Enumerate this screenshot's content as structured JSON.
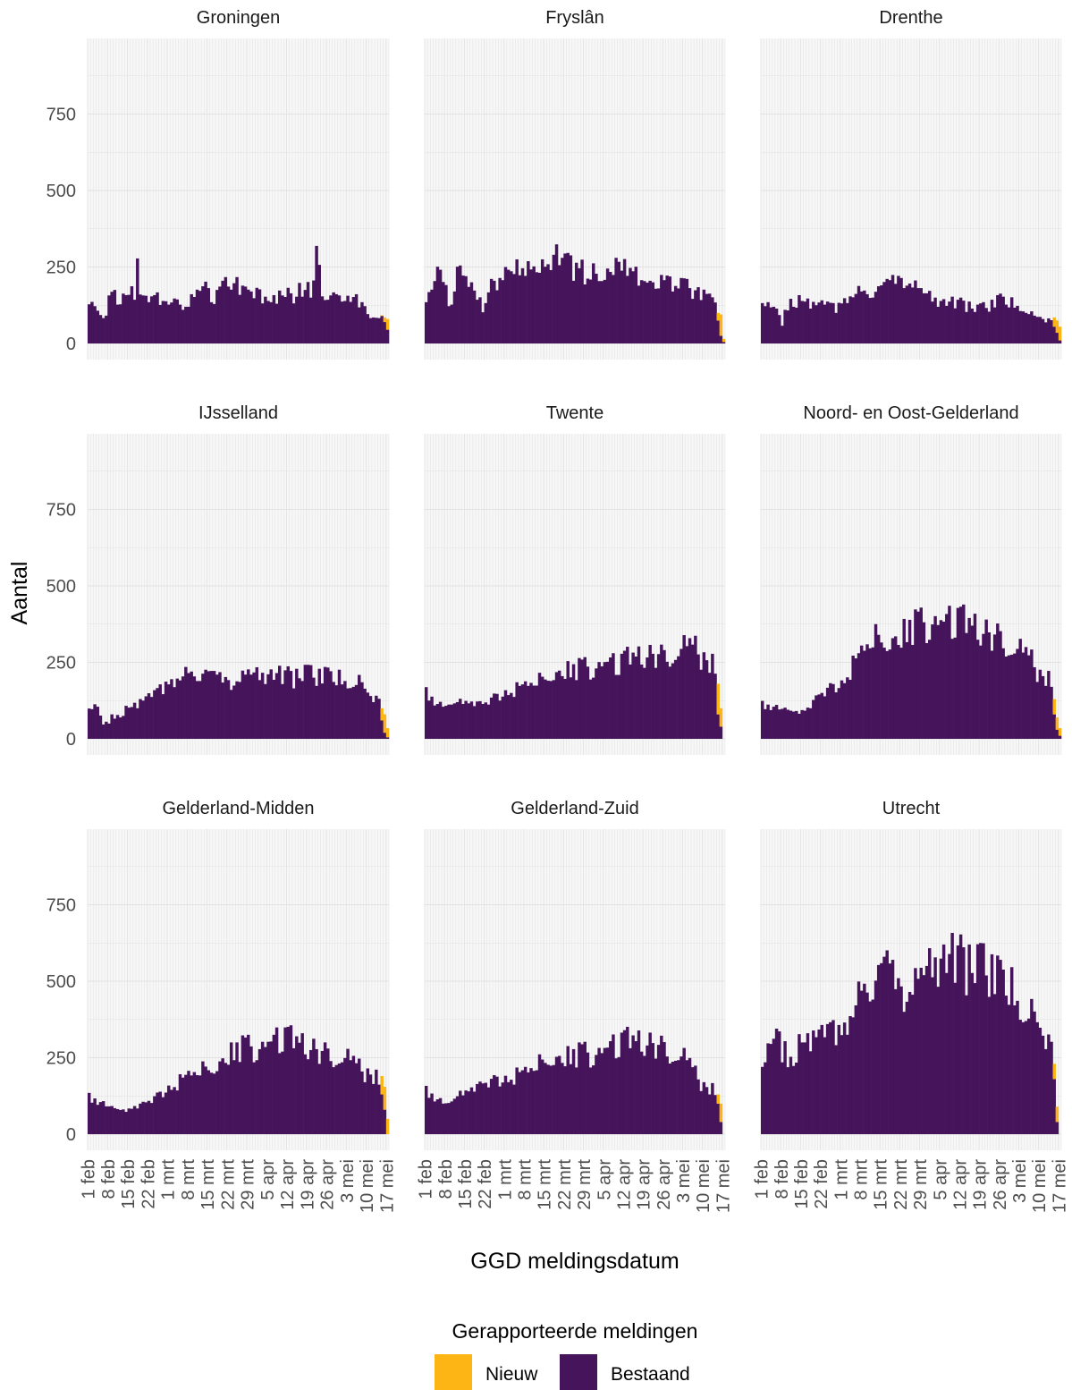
{
  "chart_data": {
    "type": "bar",
    "stacked": true,
    "xlabel": "GGD meldingsdatum",
    "ylabel": "Aantal",
    "ylim": [
      0,
      1000
    ],
    "yticks": [
      0,
      250,
      500,
      750
    ],
    "x_range": [
      "1 feb",
      "17 mei"
    ],
    "xticks": [
      "1 feb",
      "8 feb",
      "15 feb",
      "22 feb",
      "1 mrt",
      "8 mrt",
      "15 mrt",
      "22 mrt",
      "29 mrt",
      "5 apr",
      "12 apr",
      "19 apr",
      "26 apr",
      "3 mei",
      "10 mei",
      "17 mei"
    ],
    "grid": true,
    "legend": {
      "title": "Gerapporteerde meldingen",
      "position": "bottom",
      "entries": [
        {
          "label": "Nieuw",
          "color": "#FDB515"
        },
        {
          "label": "Bestaand",
          "color": "#45145A"
        }
      ]
    },
    "colors": {
      "nieuw": "#FDB515",
      "bestaand": "#45145A",
      "panel_bg": "#F7F7F7",
      "grid": "#E2E2E2"
    },
    "panels": [
      {
        "title": "Groningen",
        "anchors": [
          [
            0,
            110
          ],
          [
            3,
            125
          ],
          [
            5,
            80
          ],
          [
            8,
            170
          ],
          [
            10,
            130
          ],
          [
            13,
            180
          ],
          [
            16,
            170
          ],
          [
            17,
            240
          ],
          [
            19,
            150
          ],
          [
            24,
            155
          ],
          [
            27,
            120
          ],
          [
            30,
            140
          ],
          [
            33,
            110
          ],
          [
            37,
            150
          ],
          [
            40,
            190
          ],
          [
            44,
            140
          ],
          [
            48,
            200
          ],
          [
            52,
            200
          ],
          [
            56,
            150
          ],
          [
            60,
            160
          ],
          [
            64,
            150
          ],
          [
            68,
            160
          ],
          [
            72,
            160
          ],
          [
            76,
            180
          ],
          [
            78,
            180
          ],
          [
            80,
            280
          ],
          [
            82,
            180
          ],
          [
            84,
            160
          ],
          [
            88,
            170
          ],
          [
            92,
            155
          ],
          [
            96,
            120
          ],
          [
            98,
            95
          ]
        ],
        "bestaand_last": [
          90,
          70,
          45
        ],
        "nieuw_last": [
          2,
          15,
          35
        ]
      },
      {
        "title": "Fryslân",
        "anchors": [
          [
            0,
            150
          ],
          [
            3,
            210
          ],
          [
            6,
            230
          ],
          [
            8,
            110
          ],
          [
            11,
            220
          ],
          [
            14,
            230
          ],
          [
            17,
            150
          ],
          [
            20,
            120
          ],
          [
            24,
            200
          ],
          [
            28,
            230
          ],
          [
            32,
            260
          ],
          [
            36,
            270
          ],
          [
            40,
            250
          ],
          [
            44,
            290
          ],
          [
            48,
            260
          ],
          [
            52,
            250
          ],
          [
            56,
            230
          ],
          [
            60,
            220
          ],
          [
            64,
            230
          ],
          [
            68,
            240
          ],
          [
            72,
            240
          ],
          [
            76,
            200
          ],
          [
            80,
            190
          ],
          [
            84,
            195
          ],
          [
            88,
            190
          ],
          [
            92,
            180
          ],
          [
            96,
            170
          ],
          [
            98,
            160
          ]
        ],
        "bestaand_last": [
          75,
          25,
          5
        ],
        "nieuw_last": [
          25,
          70,
          10
        ]
      },
      {
        "title": "Drenthe",
        "anchors": [
          [
            0,
            120
          ],
          [
            4,
            110
          ],
          [
            7,
            70
          ],
          [
            10,
            150
          ],
          [
            14,
            130
          ],
          [
            18,
            120
          ],
          [
            22,
            130
          ],
          [
            26,
            110
          ],
          [
            30,
            140
          ],
          [
            34,
            160
          ],
          [
            38,
            170
          ],
          [
            42,
            180
          ],
          [
            46,
            200
          ],
          [
            50,
            215
          ],
          [
            53,
            190
          ],
          [
            56,
            160
          ],
          [
            60,
            150
          ],
          [
            64,
            140
          ],
          [
            68,
            135
          ],
          [
            72,
            125
          ],
          [
            76,
            110
          ],
          [
            80,
            120
          ],
          [
            84,
            140
          ],
          [
            88,
            130
          ],
          [
            92,
            120
          ],
          [
            96,
            80
          ],
          [
            98,
            75
          ]
        ],
        "bestaand_last": [
          55,
          35,
          10
        ],
        "nieuw_last": [
          30,
          40,
          45
        ]
      },
      {
        "title": "IJsselland",
        "anchors": [
          [
            0,
            90
          ],
          [
            3,
            100
          ],
          [
            5,
            40
          ],
          [
            8,
            70
          ],
          [
            12,
            90
          ],
          [
            16,
            100
          ],
          [
            20,
            130
          ],
          [
            24,
            150
          ],
          [
            28,
            170
          ],
          [
            32,
            190
          ],
          [
            36,
            210
          ],
          [
            40,
            220
          ],
          [
            44,
            200
          ],
          [
            48,
            190
          ],
          [
            52,
            190
          ],
          [
            56,
            200
          ],
          [
            60,
            210
          ],
          [
            64,
            220
          ],
          [
            68,
            210
          ],
          [
            72,
            200
          ],
          [
            76,
            210
          ],
          [
            80,
            200
          ],
          [
            84,
            200
          ],
          [
            88,
            195
          ],
          [
            92,
            190
          ],
          [
            95,
            180
          ],
          [
            98,
            130
          ]
        ],
        "bestaand_last": [
          60,
          20,
          5
        ],
        "nieuw_last": [
          40,
          60,
          30
        ]
      },
      {
        "title": "Twente",
        "anchors": [
          [
            0,
            150
          ],
          [
            4,
            120
          ],
          [
            8,
            110
          ],
          [
            12,
            130
          ],
          [
            16,
            120
          ],
          [
            20,
            110
          ],
          [
            24,
            130
          ],
          [
            28,
            150
          ],
          [
            32,
            170
          ],
          [
            36,
            180
          ],
          [
            40,
            190
          ],
          [
            44,
            210
          ],
          [
            48,
            220
          ],
          [
            52,
            220
          ],
          [
            56,
            230
          ],
          [
            60,
            240
          ],
          [
            64,
            250
          ],
          [
            68,
            240
          ],
          [
            72,
            260
          ],
          [
            76,
            270
          ],
          [
            80,
            280
          ],
          [
            84,
            280
          ],
          [
            88,
            290
          ],
          [
            92,
            300
          ],
          [
            95,
            300
          ],
          [
            98,
            250
          ]
        ],
        "bestaand_last": [
          80,
          40,
          0
        ],
        "nieuw_last": [
          100,
          60,
          0
        ]
      },
      {
        "title": "Noord- en Oost-Gelderland",
        "anchors": [
          [
            0,
            110
          ],
          [
            4,
            110
          ],
          [
            8,
            100
          ],
          [
            12,
            90
          ],
          [
            16,
            100
          ],
          [
            20,
            140
          ],
          [
            24,
            160
          ],
          [
            28,
            180
          ],
          [
            32,
            250
          ],
          [
            36,
            300
          ],
          [
            40,
            330
          ],
          [
            44,
            320
          ],
          [
            48,
            330
          ],
          [
            52,
            350
          ],
          [
            56,
            370
          ],
          [
            60,
            390
          ],
          [
            64,
            380
          ],
          [
            68,
            380
          ],
          [
            72,
            370
          ],
          [
            76,
            360
          ],
          [
            80,
            350
          ],
          [
            84,
            340
          ],
          [
            88,
            310
          ],
          [
            92,
            280
          ],
          [
            95,
            260
          ],
          [
            98,
            200
          ]
        ],
        "bestaand_last": [
          80,
          30,
          10
        ],
        "nieuw_last": [
          50,
          40,
          25
        ]
      },
      {
        "title": "Gelderland-Midden",
        "anchors": [
          [
            0,
            120
          ],
          [
            4,
            110
          ],
          [
            8,
            90
          ],
          [
            12,
            80
          ],
          [
            16,
            90
          ],
          [
            20,
            100
          ],
          [
            24,
            120
          ],
          [
            28,
            150
          ],
          [
            32,
            180
          ],
          [
            36,
            200
          ],
          [
            40,
            210
          ],
          [
            44,
            220
          ],
          [
            48,
            250
          ],
          [
            52,
            270
          ],
          [
            56,
            280
          ],
          [
            60,
            290
          ],
          [
            64,
            300
          ],
          [
            68,
            310
          ],
          [
            72,
            300
          ],
          [
            76,
            290
          ],
          [
            80,
            280
          ],
          [
            84,
            270
          ],
          [
            88,
            260
          ],
          [
            92,
            240
          ],
          [
            95,
            220
          ],
          [
            98,
            190
          ]
        ],
        "bestaand_last": [
          130,
          80,
          0
        ],
        "nieuw_last": [
          60,
          75,
          50
        ]
      },
      {
        "title": "Gelderland-Zuid",
        "anchors": [
          [
            0,
            140
          ],
          [
            4,
            120
          ],
          [
            8,
            100
          ],
          [
            12,
            140
          ],
          [
            16,
            150
          ],
          [
            20,
            160
          ],
          [
            24,
            170
          ],
          [
            28,
            180
          ],
          [
            32,
            200
          ],
          [
            36,
            210
          ],
          [
            40,
            230
          ],
          [
            44,
            250
          ],
          [
            48,
            250
          ],
          [
            52,
            250
          ],
          [
            56,
            260
          ],
          [
            60,
            270
          ],
          [
            64,
            280
          ],
          [
            68,
            290
          ],
          [
            72,
            300
          ],
          [
            76,
            300
          ],
          [
            80,
            300
          ],
          [
            84,
            290
          ],
          [
            88,
            270
          ],
          [
            92,
            240
          ],
          [
            95,
            200
          ],
          [
            98,
            150
          ]
        ],
        "bestaand_last": [
          100,
          40,
          0
        ],
        "nieuw_last": [
          30,
          60,
          0
        ]
      },
      {
        "title": "Utrecht",
        "anchors": [
          [
            0,
            200
          ],
          [
            3,
            280
          ],
          [
            6,
            300
          ],
          [
            9,
            250
          ],
          [
            12,
            280
          ],
          [
            16,
            280
          ],
          [
            20,
            320
          ],
          [
            24,
            330
          ],
          [
            28,
            310
          ],
          [
            32,
            380
          ],
          [
            36,
            470
          ],
          [
            40,
            520
          ],
          [
            44,
            540
          ],
          [
            48,
            480
          ],
          [
            52,
            470
          ],
          [
            56,
            480
          ],
          [
            60,
            560
          ],
          [
            64,
            600
          ],
          [
            68,
            580
          ],
          [
            72,
            550
          ],
          [
            76,
            540
          ],
          [
            80,
            520
          ],
          [
            84,
            490
          ],
          [
            88,
            470
          ],
          [
            92,
            420
          ],
          [
            95,
            380
          ],
          [
            98,
            300
          ]
        ],
        "bestaand_last": [
          180,
          40,
          0
        ],
        "nieuw_last": [
          50,
          50,
          0
        ]
      }
    ]
  }
}
